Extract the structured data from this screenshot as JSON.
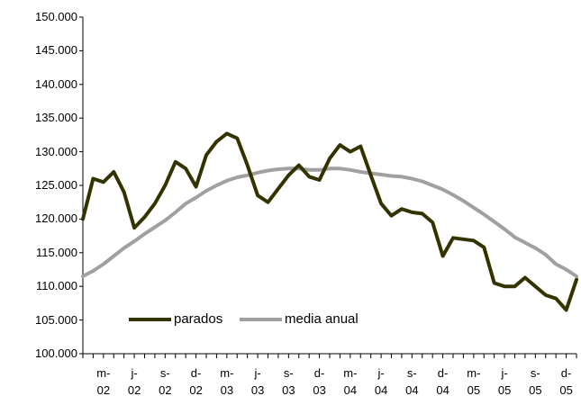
{
  "chart_data": {
    "type": "line",
    "categories": [
      null,
      null,
      "m-\n02",
      null,
      null,
      "j-\n02",
      null,
      null,
      "s-\n02",
      null,
      null,
      "d-\n02",
      null,
      null,
      "m-\n03",
      null,
      null,
      "j-\n03",
      null,
      null,
      "s-\n03",
      null,
      null,
      "d-\n03",
      null,
      null,
      "m-\n04",
      null,
      null,
      "j-\n04",
      null,
      null,
      "s-\n04",
      null,
      null,
      "d-\n04",
      null,
      null,
      "m-\n05",
      null,
      null,
      "j-\n05",
      null,
      null,
      "s-\n05",
      null,
      null,
      "d-\n05",
      null
    ],
    "series": [
      {
        "name": "parados",
        "color": "#333300",
        "values": [
          120000,
          126000,
          125500,
          127000,
          124000,
          118700,
          120300,
          122300,
          125000,
          128500,
          127500,
          124800,
          129500,
          131500,
          132700,
          132000,
          128000,
          123500,
          122500,
          124500,
          126500,
          128000,
          126300,
          125800,
          129000,
          131000,
          130000,
          130800,
          126500,
          122300,
          120500,
          121500,
          121000,
          120800,
          119500,
          114500,
          117200,
          117000,
          116800,
          115800,
          110500,
          110000,
          110000,
          111300,
          110000,
          108700,
          108200,
          106500,
          111000
        ]
      },
      {
        "name": "media anual",
        "color": "#a0a0a0",
        "values": [
          111500,
          112300,
          113300,
          114500,
          115700,
          116700,
          117800,
          118800,
          119800,
          121000,
          122300,
          123200,
          124200,
          125000,
          125700,
          126200,
          126500,
          126900,
          127200,
          127400,
          127500,
          127500,
          127300,
          127300,
          127500,
          127500,
          127300,
          127000,
          126800,
          126600,
          126400,
          126300,
          126000,
          125600,
          125000,
          124400,
          123600,
          122700,
          121700,
          120700,
          119600,
          118500,
          117300,
          116500,
          115700,
          114700,
          113300,
          112500,
          111500
        ]
      }
    ],
    "ylim": [
      100000,
      150000
    ],
    "yticks": [
      {
        "value": 100000,
        "label": "100.000"
      },
      {
        "value": 105000,
        "label": "105.000"
      },
      {
        "value": 110000,
        "label": "110.000"
      },
      {
        "value": 115000,
        "label": "115.000"
      },
      {
        "value": 120000,
        "label": "120.000"
      },
      {
        "value": 125000,
        "label": "125.000"
      },
      {
        "value": 130000,
        "label": "130.000"
      },
      {
        "value": 135000,
        "label": "135.000"
      },
      {
        "value": 140000,
        "label": "140.000"
      },
      {
        "value": 145000,
        "label": "145.000"
      },
      {
        "value": 150000,
        "label": "150.000"
      }
    ],
    "grid": false,
    "legend": "lower left"
  }
}
